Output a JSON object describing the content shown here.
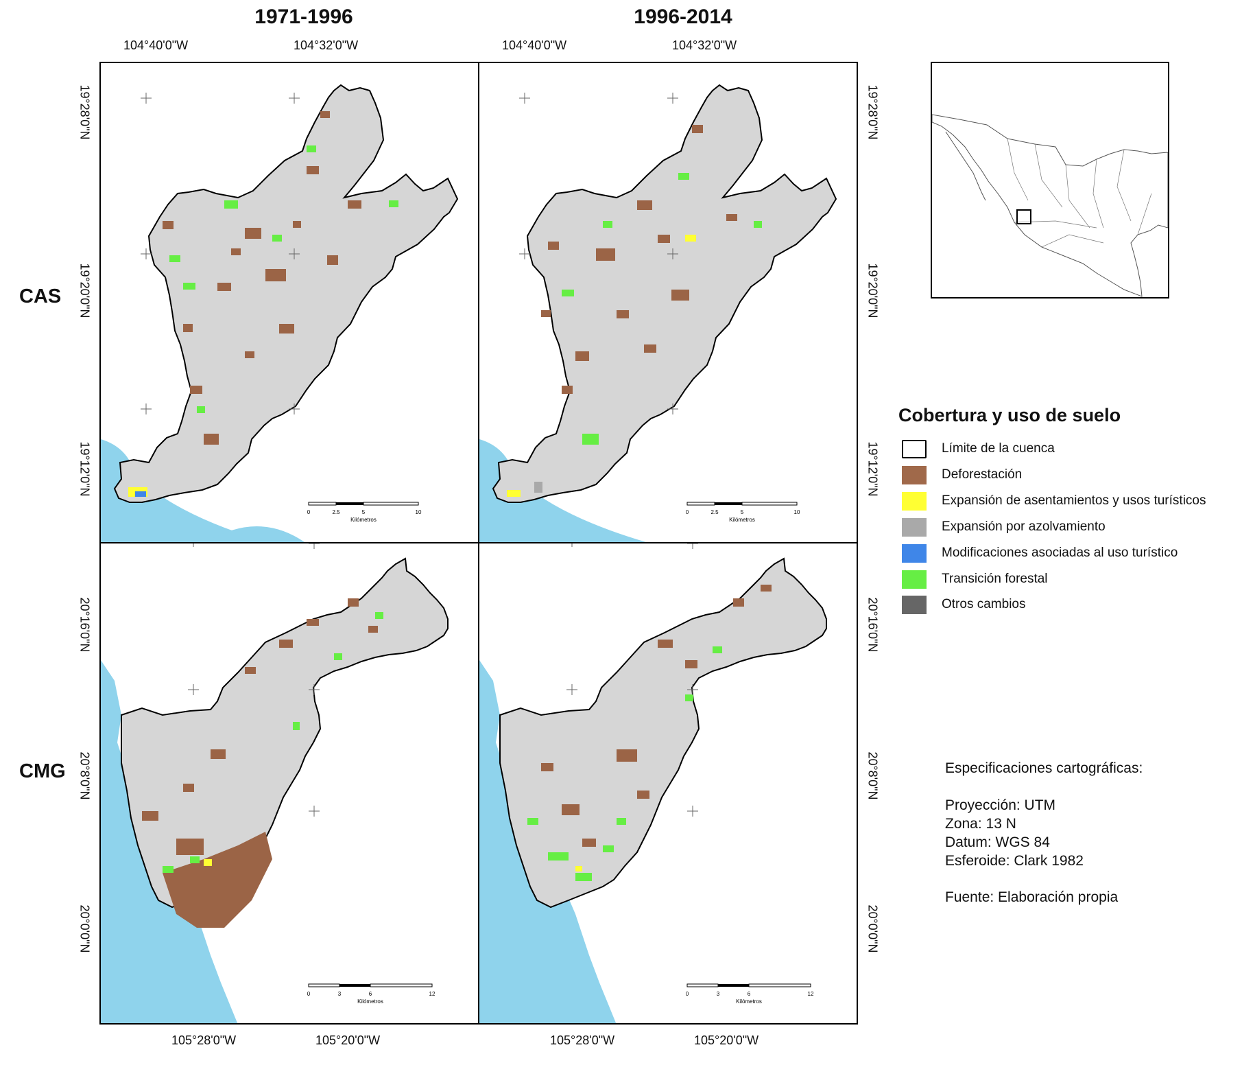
{
  "columns": {
    "left_title": "1971-1996",
    "right_title": "1996-2014"
  },
  "rows": {
    "top_label": "CAS",
    "bottom_label": "CMG"
  },
  "coordinates": {
    "top_lon_1": "104°40'0\"W",
    "top_lon_2": "104°32'0\"W",
    "top_lat_1": "19°28'0\"N",
    "top_lat_2": "19°20'0\"N",
    "top_lat_3": "19°12'0\"N",
    "bottom_lon_1": "105°28'0\"W",
    "bottom_lon_2": "105°20'0\"W",
    "bottom_lat_1": "20°16'0\"N",
    "bottom_lat_2": "20°8'0\"N",
    "bottom_lat_3": "20°0'0\"N"
  },
  "scalebars": {
    "top": {
      "ticks": [
        "0",
        "2.5",
        "5",
        "10"
      ],
      "unit": "Kilómetros"
    },
    "bottom": {
      "ticks": [
        "0",
        "3",
        "6",
        "12"
      ],
      "unit": "Kilómetros"
    }
  },
  "legend": {
    "title": "Cobertura y uso de suelo",
    "items": [
      {
        "label": "Límite de la cuenca",
        "color": "#ffffff",
        "kind": "outline"
      },
      {
        "label": "Deforestación",
        "color": "#a0694a",
        "kind": "fill"
      },
      {
        "label": "Expansión de asentamientos y usos turísticos",
        "color": "#ffff33",
        "kind": "fill"
      },
      {
        "label": "Expansión por azolvamiento",
        "color": "#a9a9a9",
        "kind": "fill"
      },
      {
        "label": "Modificaciones asociadas al uso turístico",
        "color": "#3f86e8",
        "kind": "fill"
      },
      {
        "label": "Transición forestal",
        "color": "#66ee44",
        "kind": "fill"
      },
      {
        "label": "Otros cambios",
        "color": "#666666",
        "kind": "fill"
      }
    ]
  },
  "specifications": {
    "heading": "Especificaciones cartográficas:",
    "projection": "Proyección: UTM",
    "zone": "Zona: 13 N",
    "datum": "Datum: WGS 84",
    "spheroid": "Esferoide: Clark 1982",
    "source": "Fuente: Elaboración propia"
  },
  "colors": {
    "sea": "#8fd3ec",
    "basin": "#d8d8d8",
    "deforestation": "#9b6446",
    "forest_transition": "#66ee44",
    "settlement": "#ffff33",
    "tourism_mod": "#3f86e8"
  }
}
